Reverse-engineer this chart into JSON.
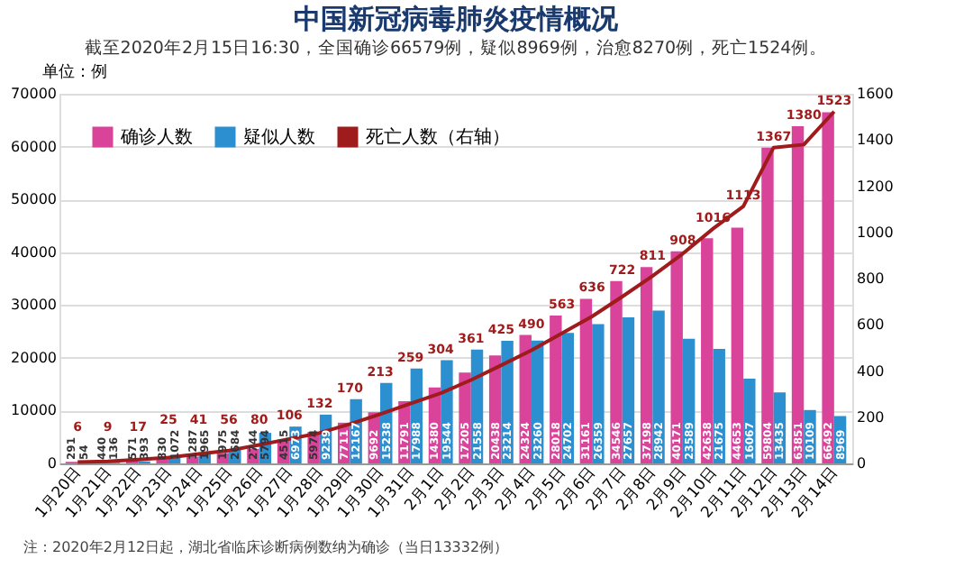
{
  "chart_data": {
    "type": "bar",
    "title": "中国新冠病毒肺炎疫情概况",
    "subtitle": "截至2020年2月15日16:30，全国确诊66579例，疑似8969例，治愈8270例，死亡1524例。",
    "ylabel": "单位：例",
    "annotations": [
      "注：2020年2月12日起，湖北省临床诊断病例数纳为确诊（当日13332例）"
    ],
    "categories": [
      "1月20日",
      "1月21日",
      "1月22日",
      "1月23日",
      "1月24日",
      "1月25日",
      "1月26日",
      "1月27日",
      "1月28日",
      "1月29日",
      "1月30日",
      "1月31日",
      "2月1日",
      "2月2日",
      "2月3日",
      "2月4日",
      "2月5日",
      "2月6日",
      "2月7日",
      "2月8日",
      "2月9日",
      "2月10日",
      "2月11日",
      "2月12日",
      "2月13日",
      "2月14日"
    ],
    "series": [
      {
        "name": "确诊人数",
        "color": "#d9449a",
        "values": [
          291,
          440,
          571,
          830,
          1287,
          1975,
          2744,
          4515,
          5974,
          7711,
          9692,
          11791,
          14380,
          17205,
          20438,
          24324,
          28018,
          31161,
          34546,
          37198,
          40171,
          42638,
          44653,
          59804,
          63851,
          66492
        ]
      },
      {
        "name": "疑似人数",
        "color": "#2b8fd0",
        "values": [
          54,
          136,
          393,
          1072,
          1965,
          2684,
          5794,
          6973,
          9239,
          12167,
          15238,
          17988,
          19544,
          21558,
          23214,
          23260,
          24702,
          26359,
          27657,
          28942,
          23589,
          21675,
          16067,
          13435,
          10109,
          8969
        ]
      },
      {
        "name": "死亡人数（右轴）",
        "type": "line",
        "axis": "y2",
        "color": "#a01c1c",
        "values": [
          6,
          9,
          17,
          25,
          41,
          56,
          80,
          106,
          132,
          170,
          213,
          259,
          304,
          361,
          425,
          490,
          563,
          636,
          722,
          811,
          908,
          1016,
          1113,
          1367,
          1380,
          1523
        ]
      }
    ],
    "ylim": [
      0,
      70000
    ],
    "yticks": [
      0,
      10000,
      20000,
      30000,
      40000,
      50000,
      60000,
      70000
    ],
    "y2lim": [
      0,
      1600
    ],
    "y2ticks": [
      0,
      200,
      400,
      600,
      800,
      1000,
      1200,
      1400,
      1600
    ],
    "data_labels": true,
    "grid": "y",
    "legend": "top left",
    "line_style": "solid",
    "marker": "none"
  }
}
